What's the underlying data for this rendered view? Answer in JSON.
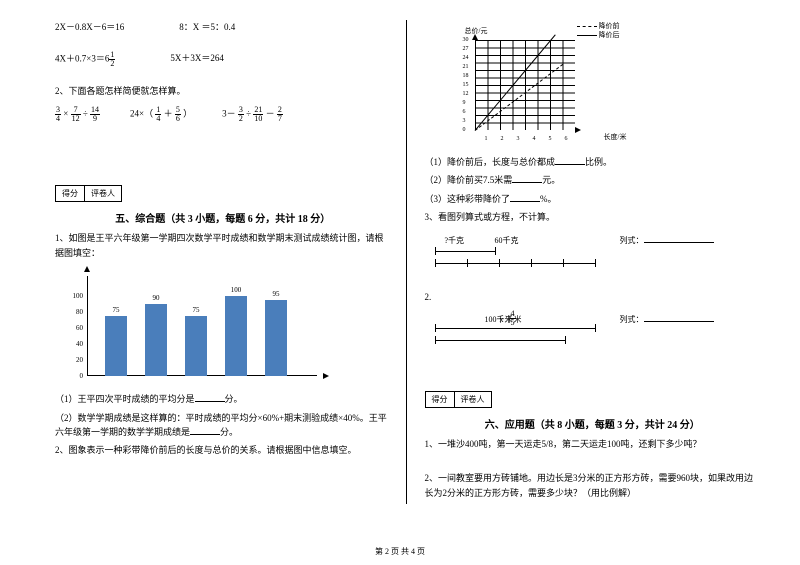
{
  "left": {
    "eq1a": "2X－0.8X－6＝16",
    "eq1b": "8：X  ＝5：0.4",
    "eq2a_pre": "4X＋0.7×3＝6",
    "eq2a_frac": {
      "n": "1",
      "d": "2"
    },
    "eq2b": "5X＋3X＝264",
    "q2_intro": "2、下面各题怎样简便就怎样算。",
    "expr_a": {
      "f1": {
        "n": "3",
        "d": "4"
      },
      "op1": "×",
      "f2": {
        "n": "7",
        "d": "12"
      },
      "op2": "÷",
      "f3": {
        "n": "14",
        "d": "9"
      }
    },
    "expr_b_pre": "24×（",
    "expr_b": {
      "f1": {
        "n": "1",
        "d": "4"
      },
      "op": "＋",
      "f2": {
        "n": "5",
        "d": "6"
      }
    },
    "expr_b_post": "）",
    "expr_c_pre": "3－",
    "expr_c": {
      "f1": {
        "n": "3",
        "d": "2"
      },
      "op1": "÷",
      "f2": {
        "n": "21",
        "d": "10"
      },
      "op2": "－",
      "f3": {
        "n": "2",
        "d": "7"
      }
    },
    "score_labels": [
      "得分",
      "评卷人"
    ],
    "sec5_title": "五、综合题（共 3 小题，每题 6 分，共计 18 分）",
    "q5_1": "1、如图是王平六年级第一学期四次数学平时成绩和数学期末测试成绩统计图，请根据图填空：",
    "bars": [
      {
        "v": 75,
        "h": 60
      },
      {
        "v": 90,
        "h": 72
      },
      {
        "v": 75,
        "h": 60
      },
      {
        "v": 100,
        "h": 80
      },
      {
        "v": 95,
        "h": 76
      }
    ],
    "yticks": [
      0,
      20,
      40,
      60,
      80,
      100
    ],
    "q5_1_1": "（1）王平四次平时成绩的平均分是",
    "q5_1_1b": "分。",
    "q5_1_2": "（2）数学学期成绩是这样算的：平时成绩的平均分×60%+期末测验成绩×40%。王平六年级第一学期的数学学期成绩是",
    "q5_1_2b": "分。",
    "q5_2": "2、图象表示一种彩带降价前后的长度与总价的关系。请根据图中信息填空。"
  },
  "right": {
    "legend_before": "降价前",
    "legend_after": "降价后",
    "y_axis_label": "总价/元",
    "x_axis_label": "长度/米",
    "lc_yticks": [
      "30",
      "27",
      "24",
      "21",
      "18",
      "15",
      "12",
      "9",
      "6",
      "3",
      "0"
    ],
    "lc_xticks": [
      "1",
      "2",
      "3",
      "4",
      "5",
      "6"
    ],
    "r1": "（1）降价前后，长度与总价都成",
    "r1b": "比例。",
    "r2": "（2）降价前买7.5米需",
    "r2b": "元。",
    "r3": "（3）这种彩带降价了",
    "r3b": "%。",
    "q3": "3、看图列算式或方程，不计算。",
    "seg1_top": "?千克",
    "seg1_bottom": "60千克",
    "seg_eq": "列式：",
    "seg2_num": "2.",
    "seg2_frac": {
      "n": "4",
      "d": "5"
    },
    "seg2_mid": "100千米",
    "seg2_bottom": "x 千米",
    "sec6_title": "六、应用题（共 8 小题，每题 3 分，共计 24 分）",
    "q6_1": "1、一堆沙400吨，第一天运走5/8，第二天运走100吨，还剩下多少吨？",
    "q6_2": "2、一间教室要用方砖铺地。用边长是3分米的正方形方砖，需要960块，如果改用边长为2分米的正方形方砖，需要多少块？（用比例解）"
  },
  "footer": "第  2  页  共  4  页"
}
